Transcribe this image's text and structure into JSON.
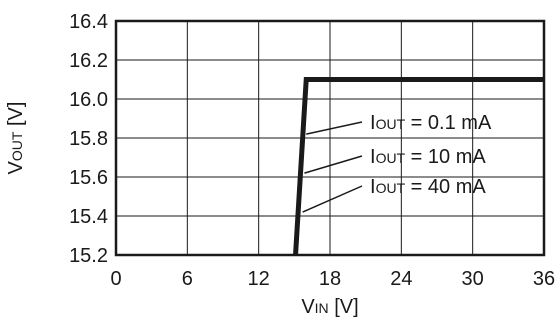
{
  "chart_data": {
    "type": "line",
    "xlabel_main": "V",
    "xlabel_sub": "IN",
    "xlabel_unit": " [V]",
    "ylabel_main": "V",
    "ylabel_sub": "OUT",
    "ylabel_unit": " [V]",
    "xlim": [
      0,
      36
    ],
    "ylim": [
      15.2,
      16.4
    ],
    "x_ticks": [
      0,
      6,
      12,
      18,
      24,
      30,
      36
    ],
    "y_ticks": [
      15.2,
      15.4,
      15.6,
      15.8,
      16.0,
      16.2,
      16.4
    ],
    "x_tick_labels": [
      "0",
      "6",
      "12",
      "18",
      "24",
      "30",
      "36"
    ],
    "y_tick_labels": [
      "15.2",
      "15.4",
      "15.6",
      "15.8",
      "16.0",
      "16.2",
      "16.4"
    ],
    "grid": true,
    "series": [
      {
        "x": [
          15.1,
          16.0,
          36.0
        ],
        "y": [
          15.2,
          16.1,
          16.1
        ]
      }
    ],
    "annotations": [
      {
        "prefix": "I",
        "sub": "OUT",
        "suffix": " = 0.1 mA",
        "target": [
          16.0,
          15.82
        ]
      },
      {
        "prefix": "I",
        "sub": "OUT",
        "suffix": " = 10 mA",
        "target": [
          15.85,
          15.62
        ]
      },
      {
        "prefix": "I",
        "sub": "OUT",
        "suffix": " = 40 mA",
        "target": [
          15.7,
          15.42
        ]
      }
    ]
  }
}
